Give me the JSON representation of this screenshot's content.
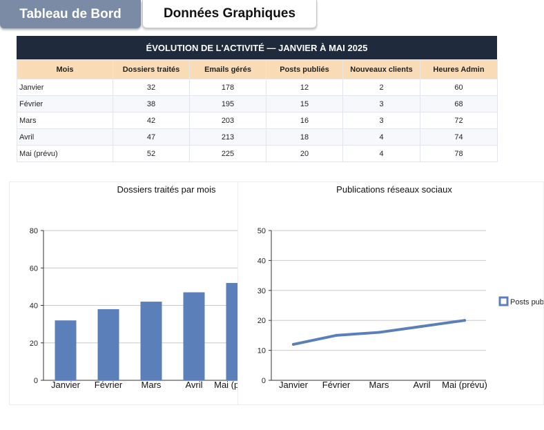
{
  "tabs": {
    "inactive_label": "Tableau de Bord",
    "active_label": "Données Graphiques"
  },
  "table": {
    "title": "ÉVOLUTION DE L'ACTIVITÉ — JANVIER À MAI 2025",
    "headers": [
      "Mois",
      "Dossiers traités",
      "Emails gérés",
      "Posts publiés",
      "Nouveaux clients",
      "Heures Admin"
    ],
    "rows": [
      [
        "Janvier",
        "32",
        "178",
        "12",
        "2",
        "60"
      ],
      [
        "Février",
        "38",
        "195",
        "15",
        "3",
        "68"
      ],
      [
        "Mars",
        "42",
        "203",
        "16",
        "3",
        "72"
      ],
      [
        "Avril",
        "47",
        "213",
        "18",
        "4",
        "74"
      ],
      [
        "Mai (prévu)",
        "52",
        "225",
        "20",
        "4",
        "78"
      ]
    ]
  },
  "colors": {
    "bar": "#5b7fb8",
    "line": "#5b7fb8",
    "header_dark": "#1f2a3d",
    "header_light": "#f9dcb5"
  },
  "chart_data": [
    {
      "type": "bar",
      "title": "Dossiers traités par mois",
      "categories": [
        "Janvier",
        "Février",
        "Mars",
        "Avril",
        "Mai (prévu)"
      ],
      "values": [
        32,
        38,
        42,
        47,
        52
      ],
      "yticks": [
        0,
        20,
        40,
        60,
        80
      ],
      "ylim": [
        0,
        80
      ],
      "grid": true
    },
    {
      "type": "line",
      "title": "Publications réseaux sociaux",
      "categories": [
        "Janvier",
        "Février",
        "Mars",
        "Avril",
        "Mai (prévu)"
      ],
      "series": [
        {
          "name": "Posts publiés",
          "values": [
            12,
            15,
            16,
            18,
            20
          ]
        }
      ],
      "yticks": [
        0,
        10,
        20,
        30,
        40,
        50
      ],
      "ylim": [
        0,
        50
      ],
      "grid": true,
      "legend": "right"
    }
  ]
}
